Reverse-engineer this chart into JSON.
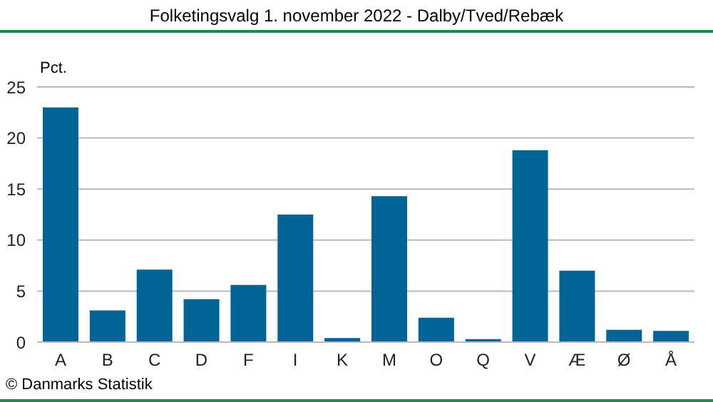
{
  "chart_data": {
    "type": "bar",
    "title": "Folketingsvalg 1. november 2022 - Dalby/Tved/Rebæk",
    "ylabel": "Pct.",
    "categories": [
      "A",
      "B",
      "C",
      "D",
      "F",
      "I",
      "K",
      "M",
      "O",
      "Q",
      "V",
      "Æ",
      "Ø",
      "Å"
    ],
    "values": [
      23.0,
      3.1,
      7.1,
      4.2,
      5.6,
      12.5,
      0.4,
      14.3,
      2.4,
      0.3,
      18.8,
      7.0,
      1.2,
      1.1
    ],
    "color": "#006496",
    "ylim": [
      0,
      25
    ],
    "yticks": [
      0,
      5,
      10,
      15,
      20,
      25
    ],
    "grid": "y",
    "annotations": [
      "© Danmarks Statistik"
    ]
  }
}
